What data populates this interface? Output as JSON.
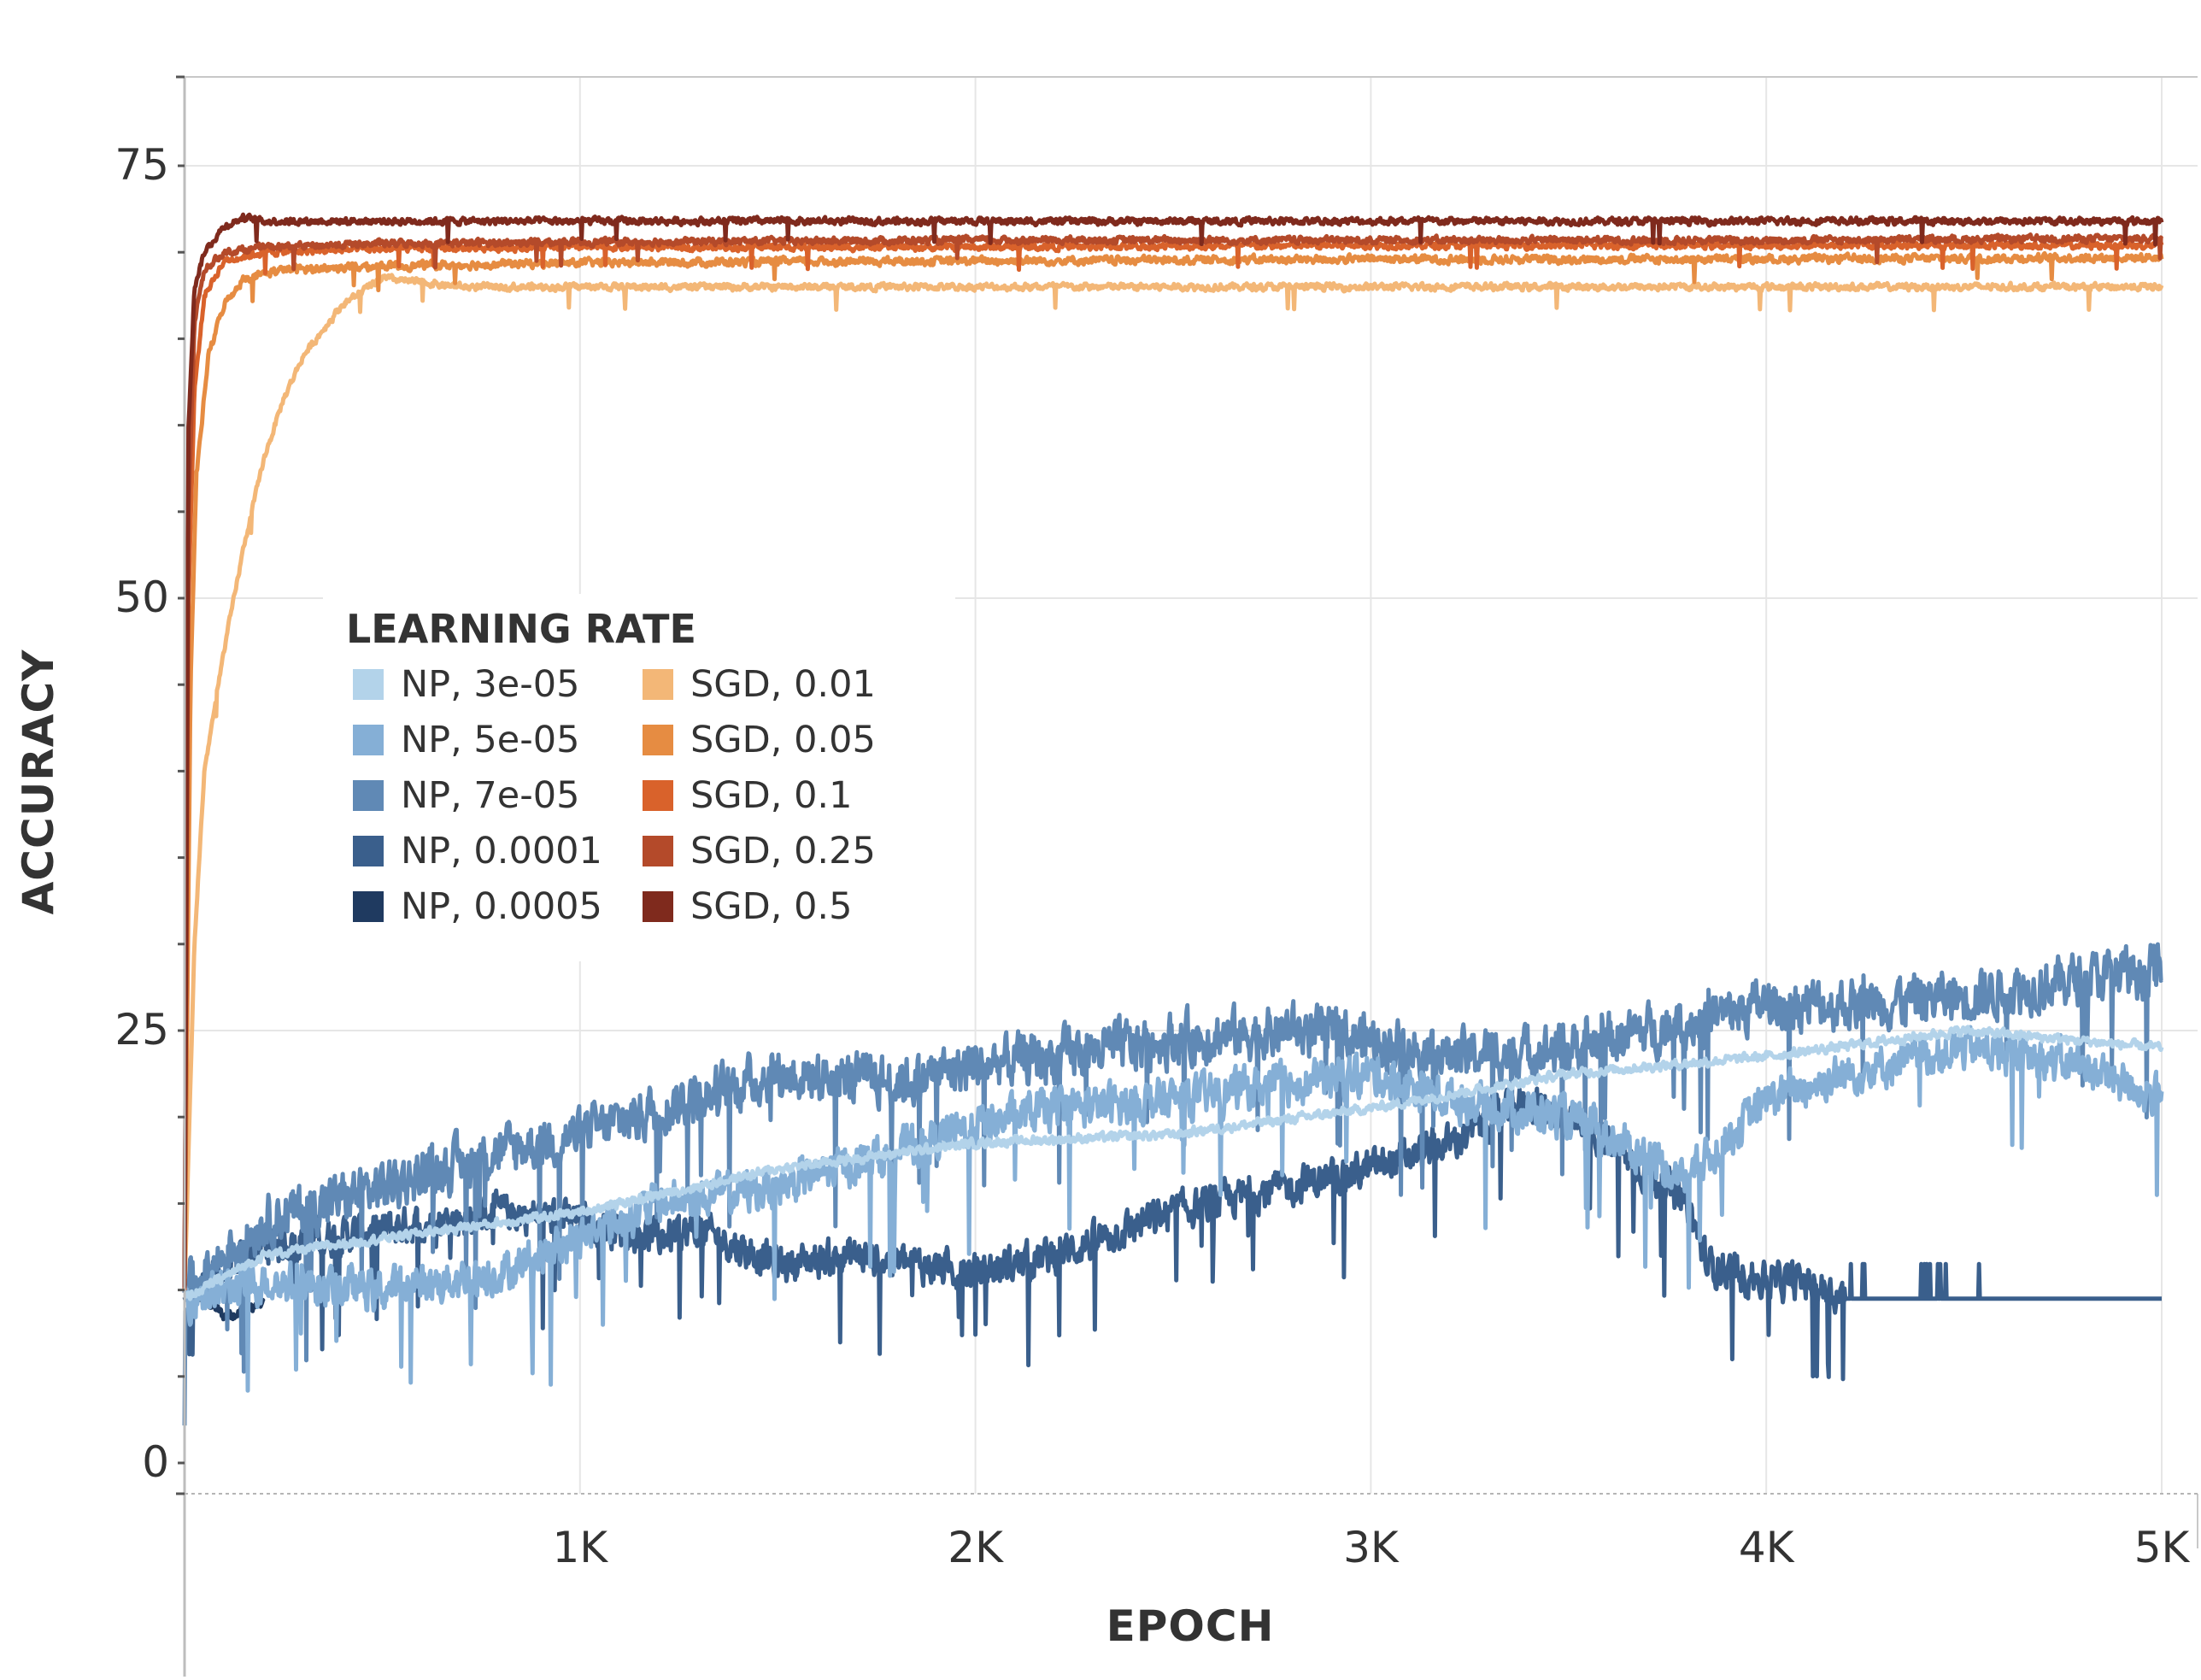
{
  "chart_data": {
    "type": "line",
    "xlabel": "EPOCH",
    "ylabel": "ACCURACY",
    "xlim": [
      0,
      5090
    ],
    "ylim": [
      -2,
      80
    ],
    "x_ticks": [
      {
        "value": 1000,
        "label": "1K"
      },
      {
        "value": 2000,
        "label": "2K"
      },
      {
        "value": 3000,
        "label": "3K"
      },
      {
        "value": 4000,
        "label": "4K"
      },
      {
        "value": 5000,
        "label": "5K"
      }
    ],
    "y_ticks": [
      {
        "value": 0,
        "label": "0"
      },
      {
        "value": 25,
        "label": "25"
      },
      {
        "value": 50,
        "label": "50"
      },
      {
        "value": 75,
        "label": "75"
      }
    ],
    "grid": true,
    "legend": {
      "title": "LEARNING RATE",
      "placement": "center-left",
      "columns": 2
    },
    "series": [
      {
        "name": "NP, 3e-05",
        "color": "#b3d3ea",
        "noise": 0.4,
        "x": [
          0,
          200,
          500,
          1000,
          1500,
          2000,
          2500,
          3000,
          3500,
          4000,
          4500,
          5000
        ],
        "y": [
          9.5,
          12,
          13,
          14.5,
          17,
          18.5,
          19,
          20.5,
          22.5,
          23.5,
          25,
          24
        ]
      },
      {
        "name": "NP, 5e-05",
        "color": "#85afd6",
        "noise": 1.8,
        "x": [
          0,
          200,
          500,
          800,
          1000,
          1200,
          1500,
          1800,
          2000,
          2200,
          2500,
          2800,
          3000,
          3200,
          3500,
          3800,
          4000,
          4200,
          4500,
          4800,
          5000
        ],
        "y": [
          9.5,
          10.5,
          10,
          11,
          13,
          15,
          16,
          18,
          19.5,
          20.5,
          21,
          22,
          22.5,
          21,
          20,
          16.5,
          21,
          22.5,
          24,
          23,
          21
        ]
      },
      {
        "name": "NP, 7e-05",
        "color": "#6089b5",
        "noise": 2.2,
        "x": [
          0,
          200,
          500,
          800,
          1000,
          1200,
          1500,
          1800,
          2000,
          2200,
          2500,
          2800,
          3000,
          3200,
          3500,
          3800,
          4000,
          4200,
          4500,
          4800,
          5000
        ],
        "y": [
          10,
          14,
          16,
          18,
          19,
          20.5,
          22.5,
          22,
          23,
          23.5,
          24.5,
          25,
          24.5,
          23.5,
          24,
          25.5,
          26.5,
          26.5,
          27,
          28,
          28.5
        ]
      },
      {
        "name": "NP, 0.0001",
        "color": "#3a5f8c",
        "noise": 1.6,
        "x": [
          0,
          200,
          500,
          800,
          1000,
          1200,
          1300,
          1500,
          1700,
          2000,
          2200,
          2500,
          2800,
          3000,
          3200,
          3400,
          3600,
          3800,
          3850,
          4000,
          4100,
          4200,
          4500,
          5000
        ],
        "y": [
          9.5,
          12.5,
          13.5,
          14.5,
          14,
          13,
          13.5,
          11.5,
          12,
          11,
          12,
          14.5,
          16,
          17,
          18.5,
          21,
          18.5,
          15,
          11.5,
          10.5,
          10.5,
          9.5,
          9.5,
          9.5
        ]
      },
      {
        "name": "NP, 0.0005",
        "color": "#1f3a60",
        "noise": 0.5,
        "x": [
          0,
          50,
          100,
          150,
          200
        ],
        "y": [
          9.5,
          9.5,
          8.5,
          8.8,
          9.2
        ]
      },
      {
        "name": "SGD, 0.01",
        "color": "#f3b777",
        "noise": 0.3,
        "x": [
          0,
          25,
          50,
          100,
          150,
          200,
          250,
          300,
          400,
          500,
          700,
          1000,
          2000,
          3000,
          4000,
          5000
        ],
        "y": [
          10,
          30,
          40,
          47,
          53,
          58,
          61.5,
          64,
          67,
          68.5,
          68,
          68,
          68,
          68,
          68,
          68
        ]
      },
      {
        "name": "SGD, 0.05",
        "color": "#e68c42",
        "noise": 0.35,
        "x": [
          0,
          15,
          30,
          60,
          100,
          150,
          250,
          500,
          1000,
          2000,
          3000,
          4000,
          5000
        ],
        "y": [
          10,
          45,
          57,
          64,
          67,
          68.5,
          69,
          69.2,
          69.4,
          69.5,
          69.6,
          69.6,
          69.7
        ]
      },
      {
        "name": "SGD, 0.1",
        "color": "#d9622b",
        "noise": 0.3,
        "x": [
          0,
          10,
          25,
          50,
          100,
          200,
          500,
          1000,
          2000,
          3000,
          4000,
          5000
        ],
        "y": [
          10,
          50,
          62,
          67.5,
          69.5,
          70,
          70.2,
          70.3,
          70.3,
          70.4,
          70.4,
          70.4
        ]
      },
      {
        "name": "SGD, 0.25",
        "color": "#b44a2a",
        "noise": 0.3,
        "x": [
          0,
          10,
          25,
          50,
          100,
          200,
          500,
          1000,
          2000,
          3000,
          4000,
          5000
        ],
        "y": [
          10,
          55,
          66,
          69,
          70,
          70.3,
          70.5,
          70.6,
          70.7,
          70.7,
          70.7,
          70.8
        ]
      },
      {
        "name": "SGD, 0.5",
        "color": "#7f2a1d",
        "noise": 0.3,
        "x": [
          0,
          10,
          25,
          50,
          100,
          150,
          200,
          500,
          1000,
          2000,
          3000,
          4000,
          5000
        ],
        "y": [
          10,
          60,
          68,
          70,
          71.5,
          72,
          71.8,
          71.8,
          71.8,
          71.8,
          71.8,
          71.8,
          71.8
        ]
      }
    ]
  }
}
